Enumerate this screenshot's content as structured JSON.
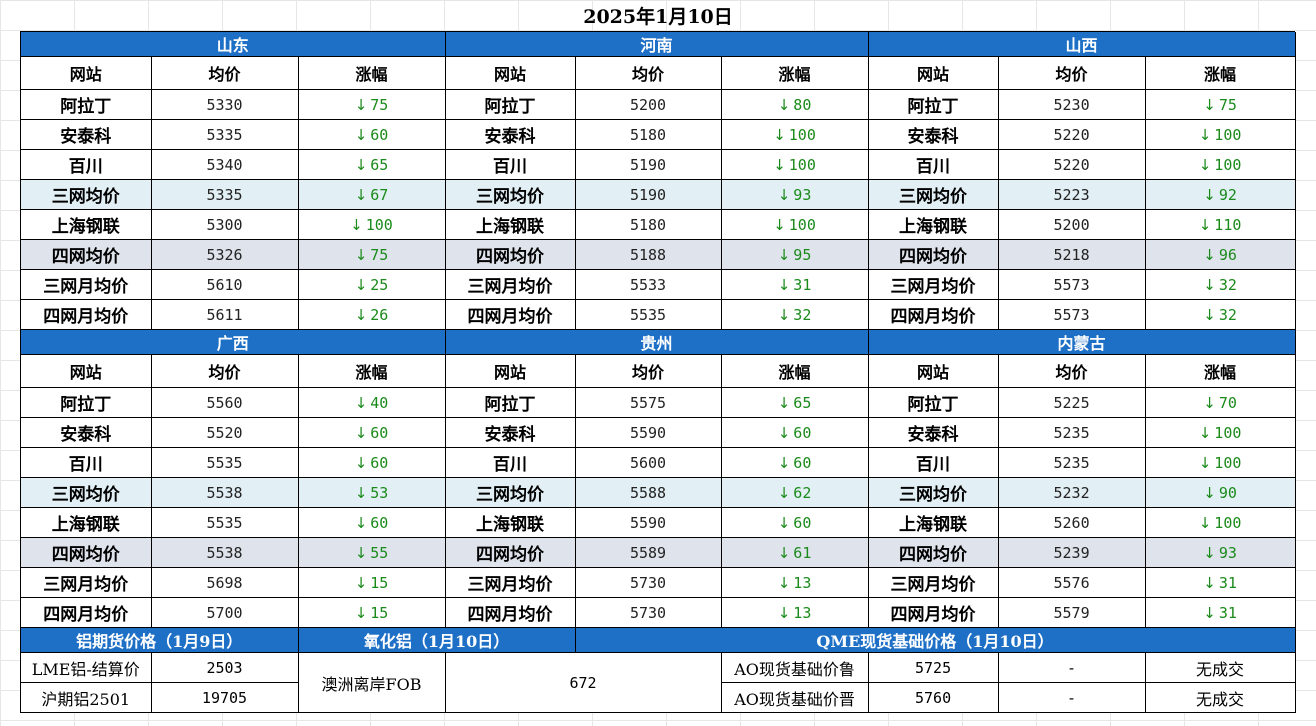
{
  "title": "2025年1月10日",
  "col_headers": [
    "网站",
    "均价",
    "涨幅"
  ],
  "blocks": [
    {
      "regions": [
        "山东",
        "河南",
        "山西"
      ],
      "rows": [
        {
          "type": "",
          "cells": [
            [
              "阿拉丁",
              "5330",
              "75"
            ],
            [
              "阿拉丁",
              "5200",
              "80"
            ],
            [
              "阿拉丁",
              "5230",
              "75"
            ]
          ]
        },
        {
          "type": "",
          "cells": [
            [
              "安泰科",
              "5335",
              "60"
            ],
            [
              "安泰科",
              "5180",
              "100"
            ],
            [
              "安泰科",
              "5220",
              "100"
            ]
          ]
        },
        {
          "type": "",
          "cells": [
            [
              "百川",
              "5340",
              "65"
            ],
            [
              "百川",
              "5190",
              "100"
            ],
            [
              "百川",
              "5220",
              "100"
            ]
          ]
        },
        {
          "type": "avg3",
          "cells": [
            [
              "三网均价",
              "5335",
              "67"
            ],
            [
              "三网均价",
              "5190",
              "93"
            ],
            [
              "三网均价",
              "5223",
              "92"
            ]
          ]
        },
        {
          "type": "",
          "cells": [
            [
              "上海钢联",
              "5300",
              "100"
            ],
            [
              "上海钢联",
              "5180",
              "100"
            ],
            [
              "上海钢联",
              "5200",
              "110"
            ]
          ]
        },
        {
          "type": "avg4",
          "cells": [
            [
              "四网均价",
              "5326",
              "75"
            ],
            [
              "四网均价",
              "5188",
              "95"
            ],
            [
              "四网均价",
              "5218",
              "96"
            ]
          ]
        },
        {
          "type": "",
          "cells": [
            [
              "三网月均价",
              "5610",
              "25"
            ],
            [
              "三网月均价",
              "5533",
              "31"
            ],
            [
              "三网月均价",
              "5573",
              "32"
            ]
          ]
        },
        {
          "type": "",
          "cells": [
            [
              "四网月均价",
              "5611",
              "26"
            ],
            [
              "四网月均价",
              "5535",
              "32"
            ],
            [
              "四网月均价",
              "5573",
              "32"
            ]
          ]
        }
      ]
    },
    {
      "regions": [
        "广西",
        "贵州",
        "内蒙古"
      ],
      "rows": [
        {
          "type": "",
          "cells": [
            [
              "阿拉丁",
              "5560",
              "40"
            ],
            [
              "阿拉丁",
              "5575",
              "65"
            ],
            [
              "阿拉丁",
              "5225",
              "70"
            ]
          ]
        },
        {
          "type": "",
          "cells": [
            [
              "安泰科",
              "5520",
              "60"
            ],
            [
              "安泰科",
              "5590",
              "60"
            ],
            [
              "安泰科",
              "5235",
              "100"
            ]
          ]
        },
        {
          "type": "",
          "cells": [
            [
              "百川",
              "5535",
              "60"
            ],
            [
              "百川",
              "5600",
              "60"
            ],
            [
              "百川",
              "5235",
              "100"
            ]
          ]
        },
        {
          "type": "avg3",
          "cells": [
            [
              "三网均价",
              "5538",
              "53"
            ],
            [
              "三网均价",
              "5588",
              "62"
            ],
            [
              "三网均价",
              "5232",
              "90"
            ]
          ]
        },
        {
          "type": "",
          "cells": [
            [
              "上海钢联",
              "5535",
              "60"
            ],
            [
              "上海钢联",
              "5590",
              "60"
            ],
            [
              "上海钢联",
              "5260",
              "100"
            ]
          ]
        },
        {
          "type": "avg4",
          "cells": [
            [
              "四网均价",
              "5538",
              "55"
            ],
            [
              "四网均价",
              "5589",
              "61"
            ],
            [
              "四网均价",
              "5239",
              "93"
            ]
          ]
        },
        {
          "type": "",
          "cells": [
            [
              "三网月均价",
              "5698",
              "15"
            ],
            [
              "三网月均价",
              "5730",
              "13"
            ],
            [
              "三网月均价",
              "5576",
              "31"
            ]
          ]
        },
        {
          "type": "",
          "cells": [
            [
              "四网月均价",
              "5700",
              "15"
            ],
            [
              "四网月均价",
              "5730",
              "13"
            ],
            [
              "四网月均价",
              "5579",
              "31"
            ]
          ]
        }
      ]
    }
  ],
  "bottom": {
    "futures_title": "铝期货价格（1月9日）",
    "alumina_title": "氧化铝（1月10日）",
    "qme_title": "QME现货基础价格（1月10日）",
    "lme_label": "LME铝-结算价",
    "lme_value": "2503",
    "shfe_label": "沪期铝2501",
    "shfe_value": "19705",
    "alumina_label": "澳洲离岸FOB",
    "alumina_value": "672",
    "ao_lu_label": "AO现货基础价鲁",
    "ao_lu_value": "5725",
    "ao_lu_change": "-",
    "ao_lu_status": "无成交",
    "ao_jin_label": "AO现货基础价晋",
    "ao_jin_value": "5760",
    "ao_jin_change": "-",
    "ao_jin_status": "无成交"
  },
  "colors": {
    "header_blue": "#1e6fc6",
    "down_green": "#1a8a1a",
    "avg3_bg": "#e2f0f5",
    "avg4_bg": "#dfe4ec"
  },
  "icons": {
    "change_direction": "down-arrow-icon",
    "arrow_glyph": "↓"
  }
}
